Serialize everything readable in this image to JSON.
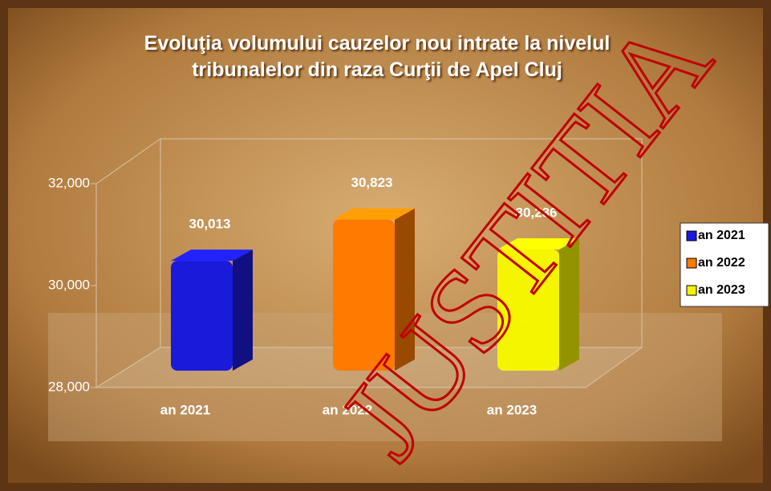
{
  "chart_data": {
    "type": "bar3d",
    "title": "Evoluţia volumului cauzelor nou intrate la nivelul tribunalelor din raza Curţii de Apel Cluj",
    "watermark": "JUSTITIA",
    "categories": [
      "an 2021",
      "an 2022",
      "an 2023"
    ],
    "series": [
      {
        "name": "an 2021",
        "color": "#1a1adb",
        "values": [
          30013,
          null,
          null
        ],
        "value_labels": [
          "30,013",
          null,
          null
        ]
      },
      {
        "name": "an 2022",
        "color": "#ff7a00",
        "values": [
          null,
          30823,
          null
        ],
        "value_labels": [
          null,
          "30,823",
          null
        ]
      },
      {
        "name": "an 2023",
        "color": "#f5f500",
        "values": [
          null,
          null,
          30236
        ],
        "value_labels": [
          null,
          null,
          "30,236"
        ]
      }
    ],
    "ylim": [
      28000,
      32000
    ],
    "yticks": [
      {
        "value": 28000,
        "label": "28,000"
      },
      {
        "value": 30000,
        "label": "30,000"
      },
      {
        "value": 32000,
        "label": "32,000"
      }
    ],
    "legend": "right"
  }
}
